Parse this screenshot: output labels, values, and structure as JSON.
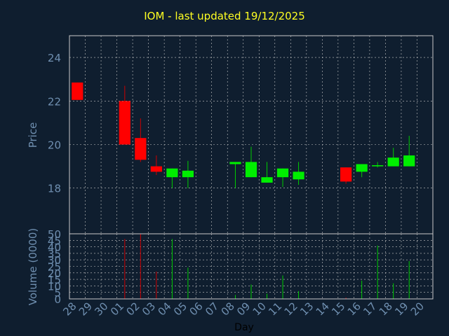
{
  "title": "IOM - last updated 19/12/2025",
  "colors": {
    "background": "#0f1e2f",
    "title": "#ffff22",
    "axis_text": "#6f8fb0",
    "frame": "#c8c8c8",
    "grid": "#c8c8c8",
    "up": "#00ee00",
    "down": "#ff0000",
    "wick": "#00cc00",
    "down_wick": "#cc0000",
    "xlabel": "#000000"
  },
  "chart_data": [
    {
      "type": "candlestick",
      "ylabel": "Price",
      "ylim": [
        15.9,
        25.0
      ],
      "y_ticks": [
        18,
        20,
        22,
        24
      ],
      "grid": true,
      "categories": [
        "28",
        "29",
        "30",
        "01",
        "02",
        "03",
        "04",
        "05",
        "06",
        "07",
        "08",
        "09",
        "10",
        "11",
        "12",
        "13",
        "14",
        "15",
        "16",
        "17",
        "18",
        "19",
        "20"
      ],
      "candles": [
        {
          "x": "28",
          "open": 22.85,
          "high": 22.85,
          "low": 22.05,
          "close": 22.05
        },
        {
          "x": "01",
          "open": 22.0,
          "high": 22.7,
          "low": 20.0,
          "close": 20.0
        },
        {
          "x": "02",
          "open": 20.3,
          "high": 21.2,
          "low": 19.2,
          "close": 19.3
        },
        {
          "x": "03",
          "open": 19.0,
          "high": 19.5,
          "low": 18.6,
          "close": 18.75
        },
        {
          "x": "04",
          "open": 18.5,
          "high": 18.9,
          "low": 18.0,
          "close": 18.9
        },
        {
          "x": "05",
          "open": 18.5,
          "high": 19.25,
          "low": 18.0,
          "close": 18.8
        },
        {
          "x": "08",
          "open": 19.1,
          "high": 19.2,
          "low": 18.0,
          "close": 19.2
        },
        {
          "x": "09",
          "open": 18.5,
          "high": 19.9,
          "low": 18.5,
          "close": 19.2
        },
        {
          "x": "10",
          "open": 18.25,
          "high": 19.2,
          "low": 18.25,
          "close": 18.5
        },
        {
          "x": "11",
          "open": 18.5,
          "high": 18.9,
          "low": 18.05,
          "close": 18.9
        },
        {
          "x": "12",
          "open": 18.4,
          "high": 19.2,
          "low": 18.15,
          "close": 18.75
        },
        {
          "x": "15",
          "open": 18.95,
          "high": 18.95,
          "low": 18.2,
          "close": 18.3
        },
        {
          "x": "16",
          "open": 18.75,
          "high": 19.1,
          "low": 18.5,
          "close": 19.1
        },
        {
          "x": "17",
          "open": 19.0,
          "high": 19.2,
          "low": 18.95,
          "close": 19.05
        },
        {
          "x": "18",
          "open": 19.0,
          "high": 19.85,
          "low": 19.0,
          "close": 19.4
        },
        {
          "x": "19",
          "open": 19.0,
          "high": 20.4,
          "low": 19.0,
          "close": 19.5
        }
      ]
    },
    {
      "type": "bar",
      "ylabel": "Volume (0000)",
      "xlabel": "Day",
      "ylim": [
        0,
        50
      ],
      "y_ticks": [
        0,
        5,
        10,
        15,
        20,
        25,
        30,
        35,
        40,
        45,
        50
      ],
      "grid": true,
      "categories": [
        "28",
        "29",
        "30",
        "01",
        "02",
        "03",
        "04",
        "05",
        "06",
        "07",
        "08",
        "09",
        "10",
        "11",
        "12",
        "13",
        "14",
        "15",
        "16",
        "17",
        "18",
        "19",
        "20"
      ],
      "bars": [
        {
          "x": "01",
          "value": 46,
          "direction": "down"
        },
        {
          "x": "02",
          "value": 50,
          "direction": "down"
        },
        {
          "x": "03",
          "value": 21,
          "direction": "down"
        },
        {
          "x": "04",
          "value": 46,
          "direction": "up"
        },
        {
          "x": "05",
          "value": 24,
          "direction": "up"
        },
        {
          "x": "08",
          "value": 3,
          "direction": "up"
        },
        {
          "x": "09",
          "value": 11,
          "direction": "up"
        },
        {
          "x": "10",
          "value": 4,
          "direction": "up"
        },
        {
          "x": "11",
          "value": 18,
          "direction": "up"
        },
        {
          "x": "12",
          "value": 6,
          "direction": "up"
        },
        {
          "x": "15",
          "value": 1,
          "direction": "down"
        },
        {
          "x": "16",
          "value": 14,
          "direction": "up"
        },
        {
          "x": "17",
          "value": 41,
          "direction": "up"
        },
        {
          "x": "18",
          "value": 12,
          "direction": "up"
        },
        {
          "x": "19",
          "value": 29,
          "direction": "up"
        }
      ]
    }
  ]
}
